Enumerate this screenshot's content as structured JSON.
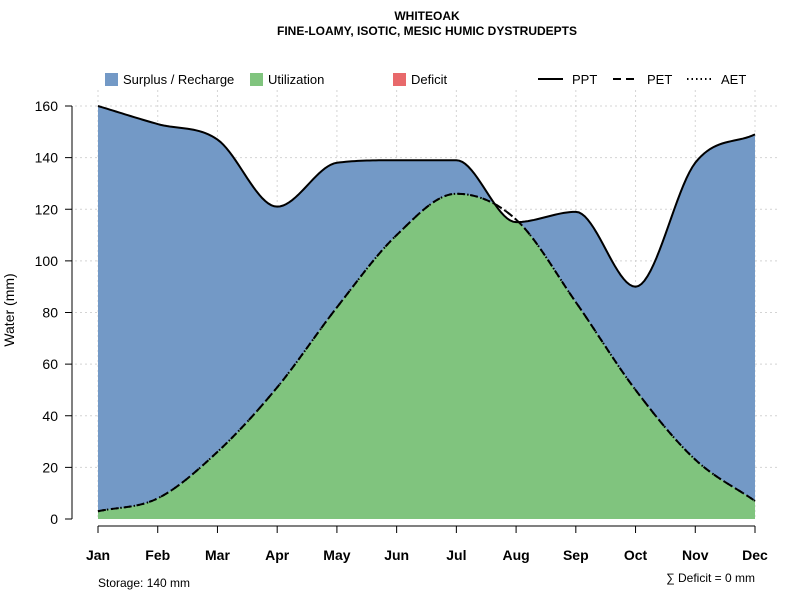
{
  "chart_data": {
    "type": "area",
    "title": "WHITEOAK",
    "subtitle": "FINE-LOAMY, ISOTIC, MESIC HUMIC DYSTRUDEPTS",
    "xlabel": "",
    "ylabel": "Water (mm)",
    "categories": [
      "Jan",
      "Feb",
      "Mar",
      "Apr",
      "May",
      "Jun",
      "Jul",
      "Aug",
      "Sep",
      "Oct",
      "Nov",
      "Dec"
    ],
    "ylim": [
      0,
      160
    ],
    "yticks": [
      0,
      20,
      40,
      60,
      80,
      100,
      120,
      140,
      160
    ],
    "grid": true,
    "legend_placement": "top",
    "series": [
      {
        "name": "PPT",
        "values": [
          160,
          153,
          147,
          121,
          138,
          139,
          139,
          115,
          119,
          90,
          138,
          149
        ]
      },
      {
        "name": "PET",
        "values": [
          3,
          8,
          26,
          51,
          82,
          110,
          126,
          116,
          84,
          50,
          23,
          7
        ]
      },
      {
        "name": "AET",
        "values": [
          3,
          8,
          26,
          51,
          82,
          110,
          126,
          116,
          84,
          50,
          23,
          7
        ]
      }
    ],
    "legend": {
      "areas": [
        {
          "name": "Surplus / Recharge",
          "color": "#7399C6"
        },
        {
          "name": "Utilization",
          "color": "#80C47E"
        },
        {
          "name": "Deficit",
          "color": "#E8696B"
        }
      ],
      "lines": [
        {
          "name": "PPT",
          "style": "solid"
        },
        {
          "name": "PET",
          "style": "dashed"
        },
        {
          "name": "AET",
          "style": "dotted"
        }
      ]
    },
    "storage_text": "Storage: 140 mm",
    "deficit_text": "∑ Deficit = 0 mm"
  }
}
